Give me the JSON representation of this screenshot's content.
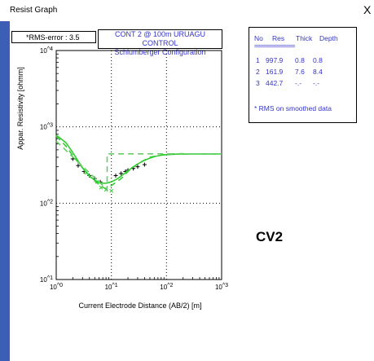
{
  "window": {
    "title": "Resist Graph",
    "close_label": "X"
  },
  "rms": {
    "label": "*RMS-error :",
    "value": "3.5"
  },
  "chart_header": {
    "line1": "CONT 2 @ 100m URUAGU CONTROL",
    "line2": "Schlumberger Configuration"
  },
  "results": {
    "headers": [
      "No",
      "Res",
      "Thick",
      "Depth"
    ],
    "separator": "================",
    "rows": [
      {
        "no": "1",
        "res": "997.9",
        "thick": "0.8",
        "depth": "0.8"
      },
      {
        "no": "2",
        "res": "161.9",
        "thick": "7.6",
        "depth": "8.4"
      },
      {
        "no": "3",
        "res": "442.7",
        "thick": "-.-",
        "depth": "-.-"
      }
    ],
    "note": "* RMS on smoothed data"
  },
  "annotation": "CV2",
  "colors": {
    "curve": "#33cc33",
    "model": "#66cc66",
    "data": "#000000",
    "header_text": "#3333cc",
    "window_edge": "#3c5fb5"
  },
  "chart_data": {
    "type": "line",
    "xlabel": "Current Electrode Distance (AB/2) [m]",
    "ylabel": "Appar. Resistivity [ohmm]",
    "x_scale": "log",
    "y_scale": "log",
    "xlim": [
      1,
      1000
    ],
    "ylim": [
      10,
      10000
    ],
    "x_ticks": [
      "10^0",
      "10^1",
      "10^2",
      "10^3"
    ],
    "y_ticks": [
      "10^1",
      "10^2",
      "10^3",
      "10^4"
    ],
    "grid": true,
    "series": [
      {
        "style": "measured-points-plus",
        "x": [
          2.0,
          2.5,
          3.2,
          4.0,
          5.0,
          6.3,
          12.0,
          15.0,
          18.0,
          20.0,
          25.0,
          30.0,
          40.0
        ],
        "y": [
          380,
          310,
          260,
          230,
          210,
          190,
          230,
          245,
          260,
          270,
          285,
          300,
          320
        ]
      },
      {
        "style": "smoothed-points-x",
        "x": [
          3.5,
          5.5,
          6.5,
          8.0,
          10.0
        ],
        "y": [
          250,
          190,
          160,
          150,
          145
        ]
      },
      {
        "style": "calculated-curve-solid",
        "x": [
          1.0,
          1.5,
          2.0,
          3.0,
          4.0,
          5.0,
          6.0,
          7.0,
          8.0,
          10.0,
          13.0,
          16.0,
          20.0,
          25.0,
          32.0,
          40.0,
          50.0,
          63.0,
          80.0,
          100.0,
          150.0,
          200.0,
          300.0,
          500.0,
          1000.0
        ],
        "y": [
          780,
          620,
          460,
          290,
          225,
          200,
          188,
          183,
          183,
          190,
          210,
          235,
          265,
          300,
          335,
          365,
          390,
          410,
          425,
          432,
          438,
          440,
          441,
          442,
          442
        ]
      },
      {
        "style": "smoothed-curve-dashed",
        "x": [
          1.0,
          1.5,
          2.0,
          3.0,
          4.0,
          5.0,
          6.0,
          7.0,
          7.5,
          8.0,
          10.0,
          15.0,
          20.0,
          30.0,
          50.0,
          100.0,
          200.0
        ],
        "y": [
          760,
          560,
          420,
          290,
          230,
          195,
          175,
          162,
          158,
          155,
          170,
          210,
          260,
          330,
          400,
          440,
          445
        ]
      },
      {
        "style": "layer-model-dashed",
        "x": [
          1.0,
          8.4,
          8.4,
          1000.0
        ],
        "y": [
          650,
          150,
          442.7,
          442.7
        ]
      }
    ]
  }
}
